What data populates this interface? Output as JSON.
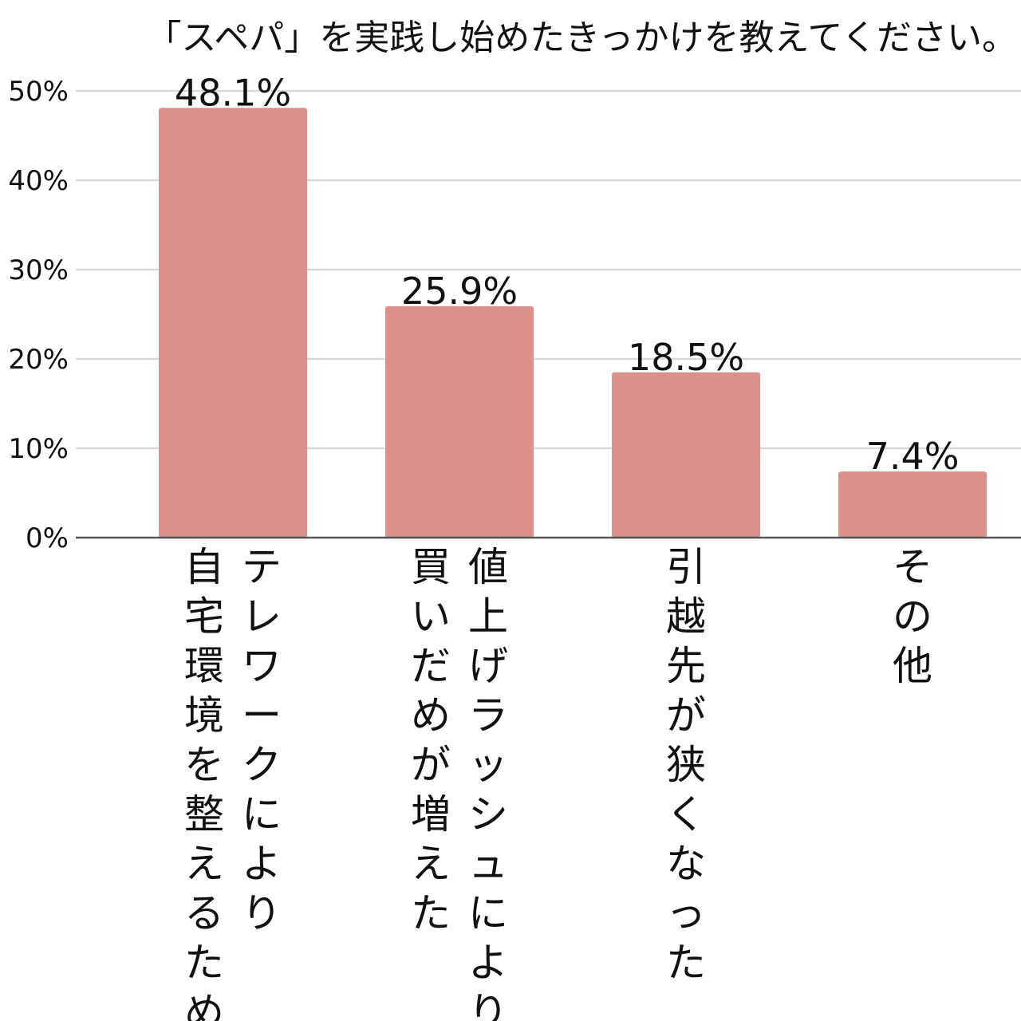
{
  "chart_data": {
    "type": "bar",
    "title": "「スペパ」を実践し始めたきっかけを教えてください。",
    "xlabel": "",
    "ylabel": "",
    "ylim": [
      0,
      50
    ],
    "y_ticks": [
      0,
      10,
      20,
      30,
      40,
      50
    ],
    "y_tick_labels": [
      "0%",
      "10%",
      "20%",
      "30%",
      "40%",
      "50%"
    ],
    "grid": true,
    "legend": "none",
    "bar_color": "#da918b",
    "categories": [
      {
        "columns": [
          "テレワークにより",
          "自宅環境を整えるため"
        ]
      },
      {
        "columns": [
          "値上げラッシュにより",
          "買いだめが増えた"
        ]
      },
      {
        "columns": [
          "引越先が狭くなった"
        ]
      },
      {
        "columns": [
          "その他"
        ]
      }
    ],
    "values": [
      48.1,
      25.9,
      18.5,
      7.4
    ],
    "value_labels": [
      "48.1%",
      "25.9%",
      "18.5%",
      "7.4%"
    ]
  }
}
